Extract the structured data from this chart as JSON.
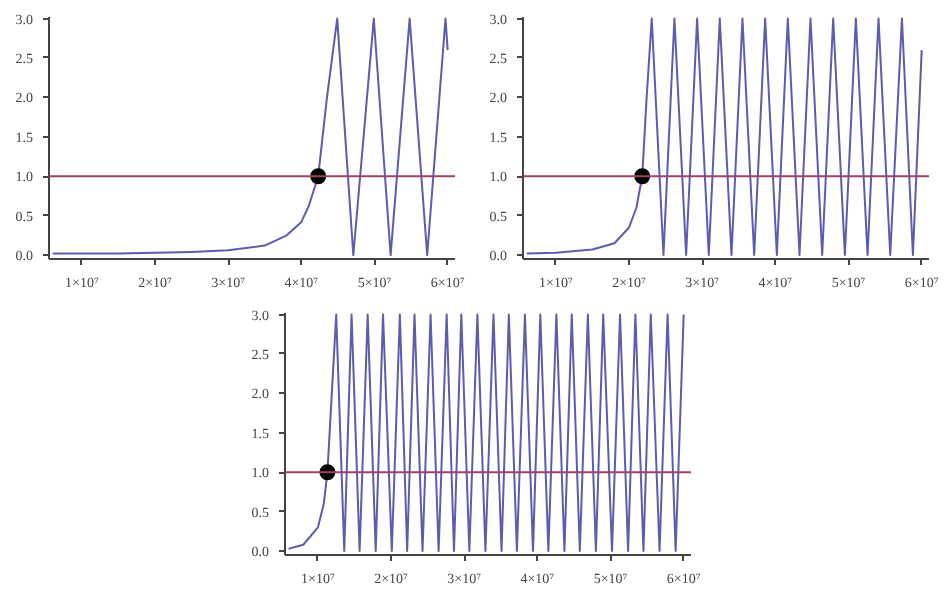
{
  "chart_data": [
    {
      "type": "line",
      "xlim": [
        5500000,
        61000000
      ],
      "ylim": [
        -0.05,
        3.02
      ],
      "xticks": [
        {
          "value": 10000000,
          "label": "1×10⁷"
        },
        {
          "value": 20000000,
          "label": "2×10⁷"
        },
        {
          "value": 30000000,
          "label": "3×10⁷"
        },
        {
          "value": 40000000,
          "label": "4×10⁷"
        },
        {
          "value": 50000000,
          "label": "5×10⁷"
        },
        {
          "value": 60000000,
          "label": "6×10⁷"
        }
      ],
      "yticks": [
        {
          "value": 0,
          "label": "0.0"
        },
        {
          "value": 0.5,
          "label": "0.5"
        },
        {
          "value": 1,
          "label": "1.0"
        },
        {
          "value": 1.5,
          "label": "1.5"
        },
        {
          "value": 2,
          "label": "2.0"
        },
        {
          "value": 2.5,
          "label": "2.5"
        },
        {
          "value": 3,
          "label": "3.0"
        }
      ],
      "grid": false,
      "ref_lines": [
        {
          "axis": "y",
          "value": 1,
          "color": "#a0406a"
        }
      ],
      "series": [
        {
          "color": "#5c5cb0",
          "x": [
            6000000,
            15000000,
            20000000,
            25000000,
            30000000,
            35000000,
            38000000,
            40000000,
            41000000,
            42300000,
            43500000,
            44900000,
            47100000,
            49900000,
            52200000,
            54800000,
            57200000,
            59700000,
            60000000
          ],
          "values": [
            0.02,
            0.02,
            0.03,
            0.04,
            0.06,
            0.12,
            0.25,
            0.42,
            0.62,
            1.0,
            2.0,
            3.0,
            0.0,
            3.0,
            0.0,
            3.0,
            0.0,
            3.0,
            2.6
          ]
        },
        {
          "type": "scatter",
          "color": "#000000",
          "marker": "circle",
          "x": [
            42300000
          ],
          "values": [
            1.0
          ]
        }
      ]
    },
    {
      "type": "line",
      "xlim": [
        5500000,
        61000000
      ],
      "ylim": [
        -0.05,
        3.02
      ],
      "xticks": [
        {
          "value": 10000000,
          "label": "1×10⁷"
        },
        {
          "value": 20000000,
          "label": "2×10⁷"
        },
        {
          "value": 30000000,
          "label": "3×10⁷"
        },
        {
          "value": 40000000,
          "label": "4×10⁷"
        },
        {
          "value": 50000000,
          "label": "5×10⁷"
        },
        {
          "value": 60000000,
          "label": "6×10⁷"
        }
      ],
      "yticks": [
        {
          "value": 0,
          "label": "0.0"
        },
        {
          "value": 0.5,
          "label": "0.5"
        },
        {
          "value": 1,
          "label": "1.0"
        },
        {
          "value": 1.5,
          "label": "1.5"
        },
        {
          "value": 2,
          "label": "2.0"
        },
        {
          "value": 2.5,
          "label": "2.5"
        },
        {
          "value": 3,
          "label": "3.0"
        }
      ],
      "grid": false,
      "ref_lines": [
        {
          "axis": "y",
          "value": 1,
          "color": "#a0406a"
        }
      ],
      "series": [
        {
          "color": "#5c5cb0",
          "x": [
            6000000,
            10000000,
            15000000,
            18000000,
            20000000,
            21000000,
            21800000,
            22400000,
            23100000,
            24700000,
            26200000,
            27800000,
            29300000,
            30900000,
            32400000,
            34000000,
            35500000,
            37100000,
            38600000,
            40200000,
            41700000,
            43300000,
            44800000,
            46400000,
            47900000,
            49500000,
            51000000,
            52600000,
            54100000,
            55700000,
            57300000,
            58800000,
            60000000
          ],
          "values": [
            0.02,
            0.03,
            0.07,
            0.15,
            0.35,
            0.6,
            1.0,
            2.0,
            3.0,
            0.0,
            3.0,
            0.0,
            3.0,
            0.0,
            3.0,
            0.0,
            3.0,
            0.0,
            3.0,
            0.0,
            3.0,
            0.0,
            3.0,
            0.0,
            3.0,
            0.0,
            3.0,
            0.0,
            3.0,
            0.0,
            3.0,
            0.0,
            2.6
          ]
        },
        {
          "type": "scatter",
          "color": "#000000",
          "marker": "circle",
          "x": [
            21800000
          ],
          "values": [
            1.0
          ]
        }
      ]
    },
    {
      "type": "line",
      "xlim": [
        5500000,
        61000000
      ],
      "ylim": [
        -0.05,
        3.02
      ],
      "xticks": [
        {
          "value": 10000000,
          "label": "1×10⁷"
        },
        {
          "value": 20000000,
          "label": "2×10⁷"
        },
        {
          "value": 30000000,
          "label": "3×10⁷"
        },
        {
          "value": 40000000,
          "label": "4×10⁷"
        },
        {
          "value": 50000000,
          "label": "5×10⁷"
        },
        {
          "value": 60000000,
          "label": "6×10⁷"
        }
      ],
      "yticks": [
        {
          "value": 0,
          "label": "0.0"
        },
        {
          "value": 0.5,
          "label": "0.5"
        },
        {
          "value": 1,
          "label": "1.0"
        },
        {
          "value": 1.5,
          "label": "1.5"
        },
        {
          "value": 2,
          "label": "2.0"
        },
        {
          "value": 2.5,
          "label": "2.5"
        },
        {
          "value": 3,
          "label": "3.0"
        }
      ],
      "grid": false,
      "ref_lines": [
        {
          "axis": "y",
          "value": 1,
          "color": "#a0406a"
        }
      ],
      "series": [
        {
          "color": "#5c5cb0",
          "x": [
            6000000,
            8000000,
            10000000,
            10800000,
            11300000,
            11900000,
            12500000,
            13600000,
            14600000,
            15700000,
            16800000,
            17900000,
            18900000,
            20100000,
            21200000,
            22200000,
            23200000,
            24300000,
            25400000,
            26500000,
            27600000,
            28600000,
            29600000,
            30700000,
            31800000,
            32900000,
            34000000,
            35100000,
            36100000,
            37200000,
            38300000,
            39400000,
            40400000,
            41500000,
            42600000,
            43700000,
            44700000,
            45800000,
            46900000,
            48000000,
            49000000,
            50200000,
            51300000,
            52400000,
            53400000,
            54500000,
            55500000,
            56700000,
            57800000,
            58900000,
            60000000
          ],
          "values": [
            0.03,
            0.08,
            0.3,
            0.6,
            1.0,
            2.0,
            3.0,
            0.0,
            3.0,
            0.0,
            3.0,
            0.0,
            3.0,
            0.0,
            3.0,
            0.0,
            3.0,
            0.0,
            3.0,
            0.0,
            3.0,
            0.0,
            3.0,
            0.0,
            3.0,
            0.0,
            3.0,
            0.0,
            3.0,
            0.0,
            3.0,
            0.0,
            3.0,
            0.0,
            3.0,
            0.0,
            3.0,
            0.0,
            3.0,
            0.0,
            3.0,
            0.0,
            3.0,
            0.0,
            3.0,
            0.0,
            3.0,
            0.0,
            3.0,
            0.0,
            3.0
          ]
        },
        {
          "type": "scatter",
          "color": "#000000",
          "marker": "circle",
          "x": [
            11300000
          ],
          "values": [
            1.0
          ]
        }
      ]
    }
  ]
}
